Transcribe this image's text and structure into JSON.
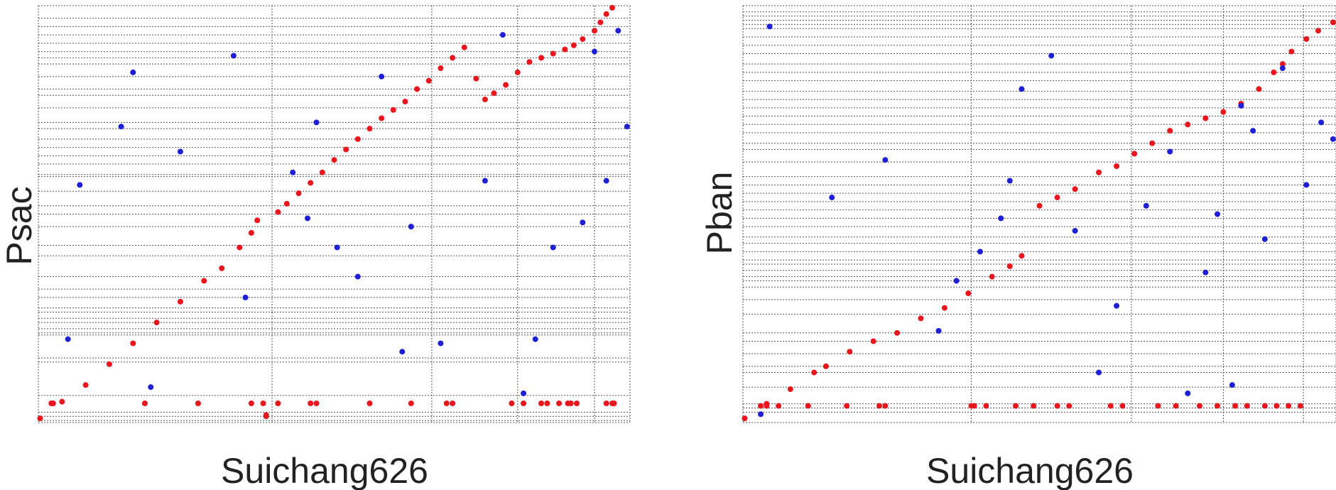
{
  "colors": {
    "forward": "#e8161d",
    "reverse": "#1f1fd6",
    "grid": "#555555"
  },
  "chart_data": [
    {
      "type": "scatter",
      "title": "",
      "xlabel": "Suichang626",
      "ylabel": "Psac",
      "xlim": [
        0,
        100
      ],
      "ylim": [
        0,
        100
      ],
      "grid": true,
      "x_breaks": [
        39.5,
        66.5,
        81,
        94
      ],
      "y_breaks": [
        0.5,
        1.5,
        2.5,
        6.5,
        14.5,
        15.5,
        21,
        21.5,
        22.5,
        24,
        25,
        26.5,
        27.5,
        30,
        32,
        35,
        40,
        42.5,
        47,
        50,
        52,
        55.5,
        59,
        59.5,
        62,
        64,
        66,
        68,
        70.5,
        72,
        75.5,
        78.5,
        80,
        83,
        86,
        87.5,
        89,
        91,
        93,
        95,
        97
      ],
      "series": [
        {
          "color": "#e8161d",
          "x": [
            0.3,
            4,
            8,
            12,
            16,
            20,
            24,
            28,
            31,
            34,
            36,
            37,
            38.5,
            38.5,
            40.5,
            42,
            44,
            46,
            48,
            50,
            52,
            54,
            56,
            58,
            60,
            62,
            64,
            66,
            68,
            70,
            72,
            74,
            75.5,
            77,
            79,
            81,
            83,
            85,
            87,
            89,
            90.5,
            92,
            94,
            95,
            96,
            97
          ],
          "y": [
            1,
            5,
            9,
            14,
            19,
            24,
            29,
            34,
            37,
            42,
            45.5,
            48.5,
            1.5,
            1.8,
            50.5,
            52.5,
            55,
            57.5,
            60,
            63,
            65.5,
            68,
            70.5,
            73,
            75,
            77,
            80,
            82,
            85,
            87.5,
            90,
            82.5,
            77.5,
            79,
            81,
            84,
            86.5,
            87.5,
            88.5,
            89.5,
            90.5,
            92,
            94,
            96,
            98,
            99.5
          ]
        },
        {
          "color": "#e8161d",
          "x": [
            2.5,
            2.2,
            18,
            27,
            36,
            38,
            40.5,
            46,
            47,
            56,
            63,
            69,
            70,
            80,
            82,
            85,
            86,
            88,
            89.5,
            90,
            91,
            96,
            97,
            97.3
          ],
          "y": 4.6
        },
        {
          "color": "#1f1fd6",
          "x": [
            5,
            7,
            14,
            16,
            19,
            24,
            33,
            35,
            43,
            45.5,
            47,
            50.5,
            54,
            58,
            61.5,
            63,
            68,
            75.5,
            78.5,
            82,
            84,
            87,
            92,
            94,
            96,
            98,
            99.5
          ],
          "y": [
            20,
            57,
            71,
            84,
            8.5,
            65,
            88,
            30,
            60,
            49,
            72,
            42,
            35,
            83,
            17,
            47,
            19,
            58,
            93,
            7,
            20,
            42,
            48,
            89,
            58,
            94,
            71
          ]
        }
      ]
    },
    {
      "type": "scatter",
      "title": "",
      "xlabel": "Suichang626",
      "ylabel": "Pban",
      "xlim": [
        0,
        100
      ],
      "ylim": [
        0,
        100
      ],
      "grid": true,
      "x_breaks": [
        38.5,
        65.5,
        81,
        94.5
      ],
      "y_breaks": [
        2.5,
        3.5,
        4.5,
        8.5,
        12,
        13.5,
        16.5,
        19.5,
        21.5,
        26,
        29.5,
        32.5,
        34,
        35,
        36.5,
        38,
        39,
        41,
        43,
        44.5,
        47,
        49,
        51,
        53,
        55,
        57,
        59,
        62.5,
        65.5,
        67,
        69.5,
        71.5,
        73.5,
        75.5,
        77.5,
        79.5,
        82,
        84,
        86,
        88.5,
        90.5,
        92.5,
        94.5,
        95.5,
        96.5,
        97.5,
        98.5
      ],
      "series": [
        {
          "color": "#e8161d",
          "x": [
            0.3,
            4,
            8,
            12,
            14,
            18,
            22,
            26,
            30,
            34,
            38,
            42,
            45,
            47,
            50,
            53,
            56,
            60,
            63,
            66,
            69,
            72,
            75,
            78,
            81,
            84,
            87,
            89.5,
            91,
            92.5,
            95,
            97,
            99.5
          ],
          "y": [
            1,
            4.5,
            8,
            12,
            13.5,
            17,
            19.5,
            21.5,
            25,
            27.5,
            31,
            35,
            37.5,
            40,
            52,
            54,
            56,
            60,
            61.5,
            64.5,
            67,
            70,
            71.5,
            73,
            74.5,
            76.5,
            80,
            84,
            86,
            89,
            92,
            94,
            96
          ]
        },
        {
          "color": "#e8161d",
          "x": [
            3,
            4,
            6,
            11,
            17.5,
            23,
            24,
            38.5,
            39,
            41,
            46,
            49,
            53,
            55,
            62,
            64,
            70,
            73,
            77,
            80,
            83,
            85,
            88,
            90,
            92,
            94
          ],
          "y": 4
        },
        {
          "color": "#1f1fd6",
          "x": [
            3,
            4.5,
            15,
            24,
            33,
            36,
            40,
            43.5,
            45,
            47,
            52,
            56,
            60,
            63,
            68,
            72,
            75,
            78,
            80,
            82.5,
            84,
            86,
            88,
            91,
            95,
            97.5,
            99.5
          ],
          "y": [
            2,
            95,
            54,
            63,
            22,
            34,
            41,
            49,
            58,
            80,
            88,
            46,
            12,
            28,
            52,
            65,
            7,
            36,
            50,
            9,
            76,
            70,
            44,
            85,
            57,
            72,
            68
          ]
        }
      ]
    }
  ]
}
